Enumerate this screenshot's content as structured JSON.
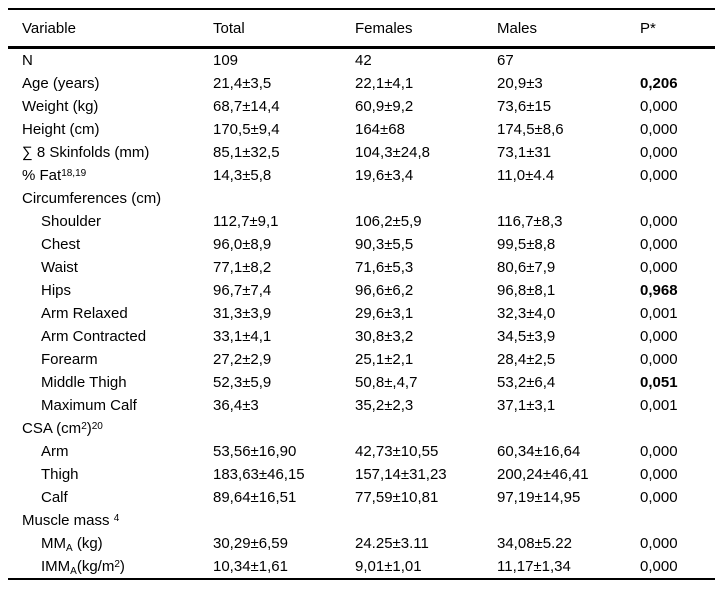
{
  "table": {
    "columns": [
      "Variable",
      "Total",
      "Females",
      "Males",
      "P*"
    ],
    "column_names": [
      "variable",
      "total",
      "females",
      "males",
      "p"
    ],
    "text_color": "#000000",
    "background_color": "#ffffff",
    "rows": [
      {
        "label": [
          {
            "t": "N"
          }
        ],
        "indent": false,
        "values": [
          "109",
          "42",
          "67",
          ""
        ],
        "p_bold": false
      },
      {
        "label": [
          {
            "t": "Age (years)"
          }
        ],
        "indent": false,
        "values": [
          "21,4±3,5",
          "22,1±4,1",
          "20,9±3",
          "0,206"
        ],
        "p_bold": true
      },
      {
        "label": [
          {
            "t": "Weight (kg)"
          }
        ],
        "indent": false,
        "values": [
          "68,7±14,4",
          "60,9±9,2",
          "73,6±15",
          "0,000"
        ],
        "p_bold": false
      },
      {
        "label": [
          {
            "t": "Height (cm)"
          }
        ],
        "indent": false,
        "values": [
          "170,5±9,4",
          "164±68",
          "174,5±8,6",
          "0,000"
        ],
        "p_bold": false
      },
      {
        "label": [
          {
            "t": "∑ 8 Skinfolds (mm)"
          }
        ],
        "indent": false,
        "values": [
          "85,1±32,5",
          "104,3±24,8",
          "73,1±31",
          "0,000"
        ],
        "p_bold": false
      },
      {
        "label": [
          {
            "t": "% Fat"
          },
          {
            "t": "18,19",
            "s": "sup"
          }
        ],
        "indent": false,
        "values": [
          "14,3±5,8",
          "19,6±3,4",
          "11,0±4.4",
          "0,000"
        ],
        "p_bold": false
      },
      {
        "label": [
          {
            "t": "Circumferences (cm)"
          }
        ],
        "indent": false,
        "values": [
          "",
          "",
          "",
          ""
        ],
        "p_bold": false
      },
      {
        "label": [
          {
            "t": "Shoulder"
          }
        ],
        "indent": true,
        "values": [
          "112,7±9,1",
          "106,2±5,9",
          "116,7±8,3",
          "0,000"
        ],
        "p_bold": false
      },
      {
        "label": [
          {
            "t": "Chest"
          }
        ],
        "indent": true,
        "values": [
          "96,0±8,9",
          "90,3±5,5",
          "99,5±8,8",
          "0,000"
        ],
        "p_bold": false
      },
      {
        "label": [
          {
            "t": "Waist"
          }
        ],
        "indent": true,
        "values": [
          "77,1±8,2",
          "71,6±5,3",
          "80,6±7,9",
          "0,000"
        ],
        "p_bold": false
      },
      {
        "label": [
          {
            "t": "Hips"
          }
        ],
        "indent": true,
        "values": [
          "96,7±7,4",
          "96,6±6,2",
          "96,8±8,1",
          "0,968"
        ],
        "p_bold": true
      },
      {
        "label": [
          {
            "t": "Arm Relaxed"
          }
        ],
        "indent": true,
        "values": [
          "31,3±3,9",
          "29,6±3,1",
          "32,3±4,0",
          "0,001"
        ],
        "p_bold": false
      },
      {
        "label": [
          {
            "t": "Arm Contracted"
          }
        ],
        "indent": true,
        "values": [
          "33,1±4,1",
          "30,8±3,2",
          "34,5±3,9",
          "0,000"
        ],
        "p_bold": false
      },
      {
        "label": [
          {
            "t": "Forearm"
          }
        ],
        "indent": true,
        "values": [
          "27,2±2,9",
          "25,1±2,1",
          "28,4±2,5",
          "0,000"
        ],
        "p_bold": false
      },
      {
        "label": [
          {
            "t": "Middle Thigh"
          }
        ],
        "indent": true,
        "values": [
          "52,3±5,9",
          "50,8±,4,7",
          "53,2±6,4",
          "0,051"
        ],
        "p_bold": true
      },
      {
        "label": [
          {
            "t": "Maximum Calf"
          }
        ],
        "indent": true,
        "values": [
          "36,4±3",
          "35,2±2,3",
          "37,1±3,1",
          "0,001"
        ],
        "p_bold": false
      },
      {
        "label": [
          {
            "t": "CSA (cm"
          },
          {
            "t": "2",
            "s": "sup"
          },
          {
            "t": ")"
          },
          {
            "t": "20",
            "s": "sup"
          }
        ],
        "indent": false,
        "values": [
          "",
          "",
          "",
          ""
        ],
        "p_bold": false
      },
      {
        "label": [
          {
            "t": "Arm"
          }
        ],
        "indent": true,
        "values": [
          "53,56±16,90",
          "42,73±10,55",
          "60,34±16,64",
          "0,000"
        ],
        "p_bold": false
      },
      {
        "label": [
          {
            "t": "Thigh"
          }
        ],
        "indent": true,
        "values": [
          "183,63±46,15",
          "157,14±31,23",
          "200,24±46,41",
          "0,000"
        ],
        "p_bold": false
      },
      {
        "label": [
          {
            "t": "Calf"
          }
        ],
        "indent": true,
        "values": [
          "89,64±16,51",
          "77,59±10,81",
          "97,19±14,95",
          "0,000"
        ],
        "p_bold": false
      },
      {
        "label": [
          {
            "t": "Muscle mass "
          },
          {
            "t": "4",
            "s": "sup"
          }
        ],
        "indent": false,
        "values": [
          "",
          "",
          "",
          ""
        ],
        "p_bold": false
      },
      {
        "label": [
          {
            "t": "MM"
          },
          {
            "t": "A",
            "s": "sub"
          },
          {
            "t": " (kg)"
          }
        ],
        "indent": true,
        "values": [
          "30,29±6,59",
          "24.25±3.11",
          "34,08±5.22",
          "0,000"
        ],
        "p_bold": false
      },
      {
        "label": [
          {
            "t": "IMM"
          },
          {
            "t": "A",
            "s": "sub"
          },
          {
            "t": "(kg/m"
          },
          {
            "t": "2",
            "s": "sup"
          },
          {
            "t": ")"
          }
        ],
        "indent": true,
        "values": [
          "10,34±1,61",
          "9,01±1,01",
          "11,17±1,34",
          "0,000"
        ],
        "p_bold": false
      }
    ]
  }
}
